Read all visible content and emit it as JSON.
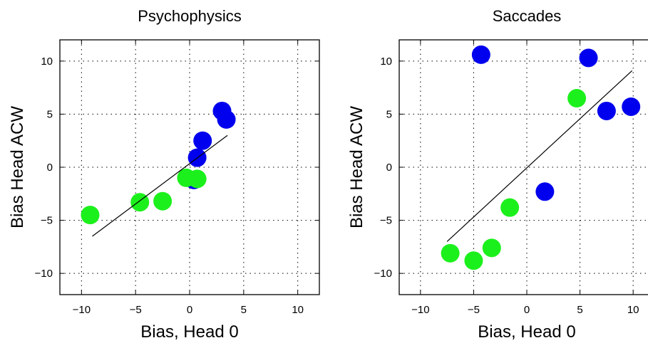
{
  "chart_data": [
    {
      "type": "scatter",
      "title": "Psychophysics",
      "xlabel": "Bias, Head 0",
      "ylabel": "Bias Head ACW",
      "xlim": [
        -12,
        12
      ],
      "ylim": [
        -12,
        12
      ],
      "xticks": [
        -10,
        -5,
        0,
        5,
        10
      ],
      "yticks": [
        -10,
        -5,
        0,
        5,
        10
      ],
      "xtick_labels": [
        "−10",
        "−5",
        "0",
        "5",
        "10"
      ],
      "ytick_labels": [
        "−10",
        "−5",
        "0",
        "5",
        "10"
      ],
      "grid": true,
      "legend": "none",
      "series": [
        {
          "color": "#0000ee",
          "points": [
            [
              3.0,
              5.3
            ],
            [
              3.4,
              4.5
            ],
            [
              1.2,
              2.5
            ],
            [
              0.7,
              0.9
            ],
            [
              0.4,
              -1.2
            ]
          ]
        },
        {
          "color": "#1cf01c",
          "points": [
            [
              -9.2,
              -4.5
            ],
            [
              -4.6,
              -3.3
            ],
            [
              -2.5,
              -3.2
            ],
            [
              -0.3,
              -1.0
            ],
            [
              0.7,
              -1.1
            ]
          ]
        }
      ],
      "fit_line": [
        [
          -9.0,
          -6.5
        ],
        [
          3.5,
          3.0
        ]
      ]
    },
    {
      "type": "scatter",
      "title": "Saccades",
      "xlabel": "Bias, Head 0",
      "ylabel": "Bias Head ACW",
      "xlim": [
        -12,
        12
      ],
      "ylim": [
        -12,
        12
      ],
      "xticks": [
        -10,
        -5,
        0,
        5,
        10
      ],
      "yticks": [
        -10,
        -5,
        0,
        5,
        10
      ],
      "xtick_labels": [
        "−10",
        "−5",
        "0",
        "5",
        "10"
      ],
      "ytick_labels": [
        "−10",
        "−5",
        "0",
        "5",
        "10"
      ],
      "grid": true,
      "legend": "none",
      "series": [
        {
          "color": "#0000ee",
          "points": [
            [
              -4.3,
              10.6
            ],
            [
              5.8,
              10.3
            ],
            [
              7.5,
              5.3
            ],
            [
              9.8,
              5.7
            ],
            [
              1.7,
              -2.3
            ]
          ]
        },
        {
          "color": "#1cf01c",
          "points": [
            [
              4.7,
              6.5
            ],
            [
              -1.6,
              -3.8
            ],
            [
              -7.2,
              -8.1
            ],
            [
              -5.0,
              -8.8
            ],
            [
              -3.3,
              -7.6
            ]
          ]
        }
      ],
      "fit_line": [
        [
          -7.5,
          -7.0
        ],
        [
          9.9,
          9.1
        ]
      ]
    }
  ]
}
